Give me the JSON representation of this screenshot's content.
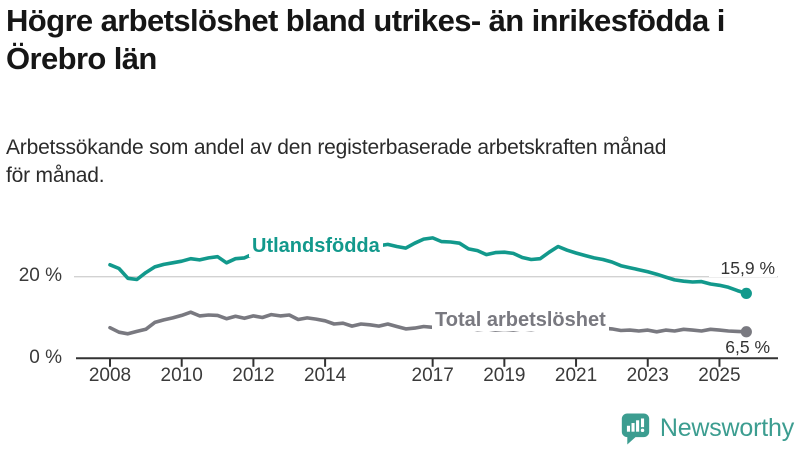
{
  "header": {
    "title_lines": [
      "Högre arbetslöshet bland utrikes- än inrikesfödda i",
      "Örebro län"
    ],
    "subtitle_lines": [
      "Arbetssökande som andel av den registerbaserade arbetskraften månad",
      "för månad."
    ]
  },
  "footer": {
    "brand_name": "Newsworthy",
    "logo_icon": "bar-chart-speech-bubble-icon"
  },
  "colors": {
    "series_foreign_born": "#12998c",
    "series_total": "#797980",
    "logo_teal": "#3c9d90",
    "axis": "#333333",
    "gridline": "#d2d2d2",
    "tick_text": "#3a3a3a",
    "title_text": "#161616"
  },
  "chart_data": {
    "type": "line",
    "unit": "%",
    "x_start": 2008,
    "x_step": 0.25,
    "xlim": [
      2008,
      2026
    ],
    "ylim": [
      0,
      31
    ],
    "x_ticks": [
      2008,
      2010,
      2012,
      2014,
      2017,
      2019,
      2021,
      2023,
      2025
    ],
    "x_tick_labels": [
      "2008",
      "2010",
      "2012",
      "2014",
      "2017",
      "2019",
      "2021",
      "2023",
      "2025"
    ],
    "y_ticks": [
      0,
      20
    ],
    "y_tick_labels": [
      "0 %",
      "20 %"
    ],
    "y_gridlines": [
      20
    ],
    "grid": "single light horizontal gridline at 20 %, solid dark baseline at 0 %",
    "legend": "inline labels on lines; value labels with dots at series end",
    "series": [
      {
        "name": "Utlandsfödda",
        "color": "#12998c",
        "end_label": "15,9 %",
        "end_value": 15.9,
        "values": [
          22.9,
          22.0,
          19.6,
          19.3,
          21.0,
          22.4,
          23.0,
          23.4,
          23.8,
          24.4,
          24.1,
          24.6,
          24.9,
          23.4,
          24.4,
          24.6,
          25.6,
          26.2,
          26.4,
          26.2,
          26.6,
          27.0,
          27.2,
          27.0,
          27.3,
          27.6,
          27.4,
          27.2,
          27.5,
          27.8,
          27.6,
          27.9,
          27.4,
          27.0,
          28.2,
          29.2,
          29.5,
          28.6,
          28.5,
          28.2,
          26.8,
          26.4,
          25.4,
          25.9,
          26.0,
          25.7,
          24.7,
          24.2,
          24.4,
          26.0,
          27.4,
          26.5,
          25.8,
          25.2,
          24.6,
          24.2,
          23.6,
          22.7,
          22.2,
          21.7,
          21.2,
          20.6,
          19.9,
          19.2,
          18.9,
          18.7,
          18.8,
          18.2,
          17.9,
          17.4,
          16.6,
          15.9
        ]
      },
      {
        "name": "Total arbetslöshet",
        "color": "#797980",
        "end_label": "6,5 %",
        "end_value": 6.5,
        "values": [
          7.5,
          6.4,
          6.0,
          6.6,
          7.1,
          8.8,
          9.4,
          9.9,
          10.5,
          11.3,
          10.4,
          10.6,
          10.5,
          9.7,
          10.3,
          9.8,
          10.4,
          10.0,
          10.7,
          10.4,
          10.6,
          9.5,
          9.9,
          9.6,
          9.2,
          8.4,
          8.6,
          7.9,
          8.4,
          8.2,
          7.9,
          8.4,
          7.8,
          7.2,
          7.4,
          7.8,
          7.6,
          7.3,
          7.5,
          7.2,
          7.4,
          7.0,
          7.2,
          6.9,
          7.1,
          6.9,
          7.2,
          7.0,
          7.3,
          8.6,
          9.2,
          8.9,
          8.7,
          8.2,
          7.9,
          7.4,
          7.2,
          6.8,
          6.9,
          6.7,
          6.9,
          6.5,
          6.9,
          6.7,
          7.1,
          6.9,
          6.7,
          7.1,
          6.9,
          6.7,
          6.6,
          6.5
        ]
      }
    ]
  }
}
